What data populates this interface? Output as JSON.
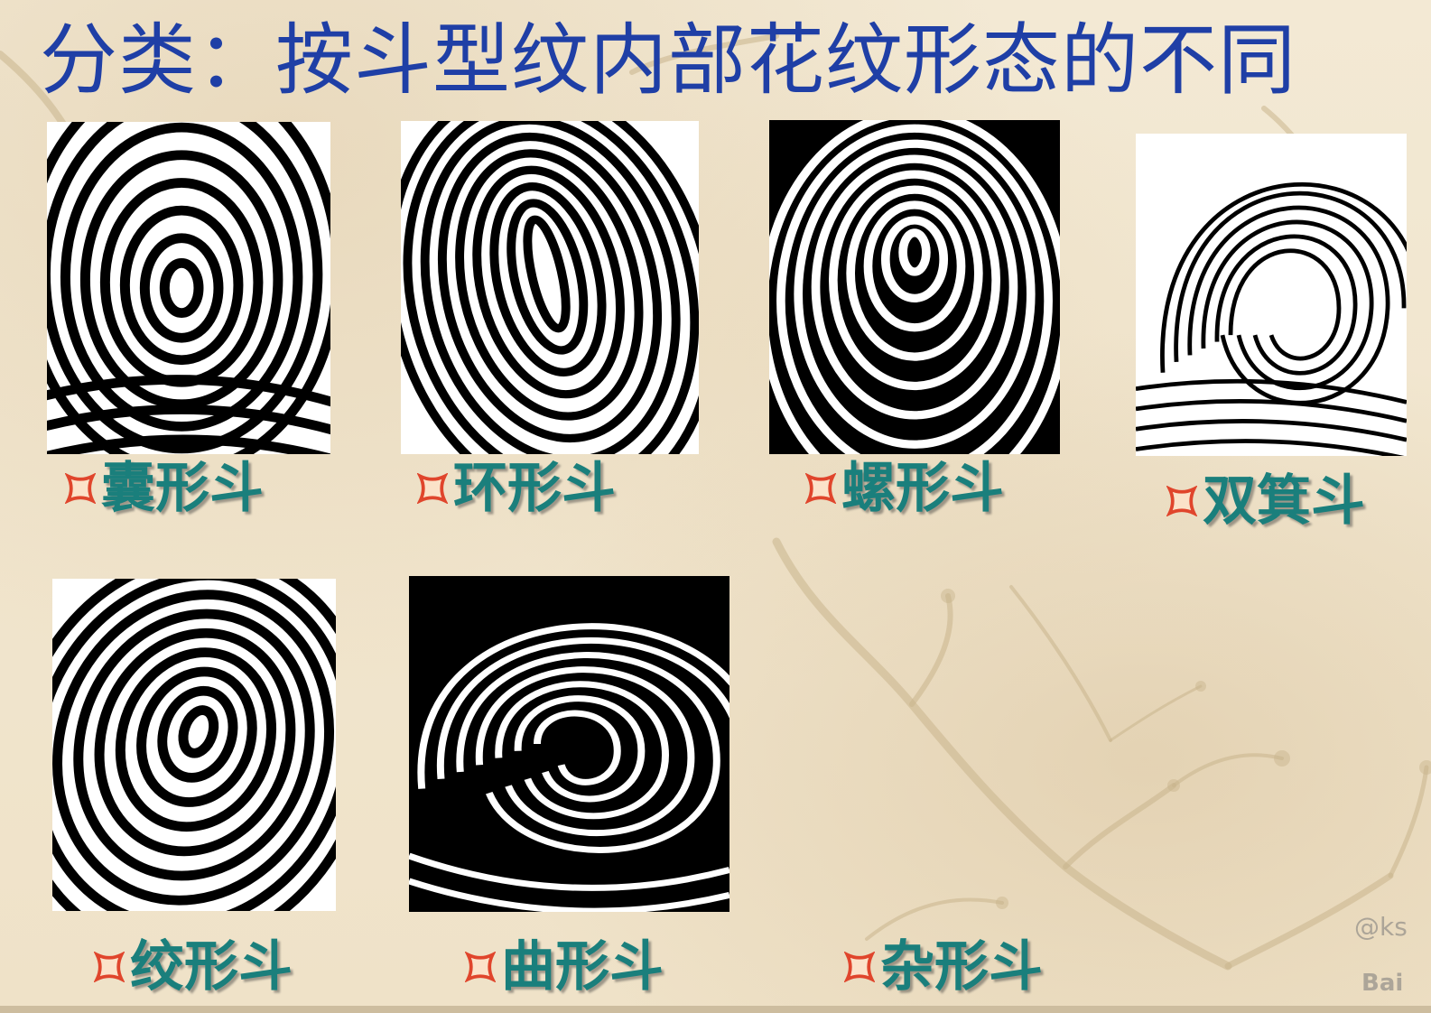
{
  "title": "分类：按斗型纹内部花纹形态的不同",
  "colors": {
    "title": "#1f3fa6",
    "label": "#1a7f7c",
    "bullet": "#e0452c",
    "background": "#f1e6cf"
  },
  "bullet_icon": "four-point-star-bullet-icon",
  "fingerprints": [
    {
      "label": "囊形斗",
      "icon": "pocket-whorl-fingerprint-image"
    },
    {
      "label": "环形斗",
      "icon": "loop-whorl-fingerprint-image"
    },
    {
      "label": "螺形斗",
      "icon": "spiral-whorl-fingerprint-image"
    },
    {
      "label": "双箕斗",
      "icon": "double-loop-fingerprint-image"
    },
    {
      "label": "绞形斗",
      "icon": "twisted-whorl-fingerprint-image"
    },
    {
      "label": "曲形斗",
      "icon": "curved-whorl-fingerprint-image"
    },
    {
      "label": "杂形斗",
      "icon": null
    }
  ],
  "watermark": {
    "handle": "@ks",
    "logo": "Bai"
  }
}
